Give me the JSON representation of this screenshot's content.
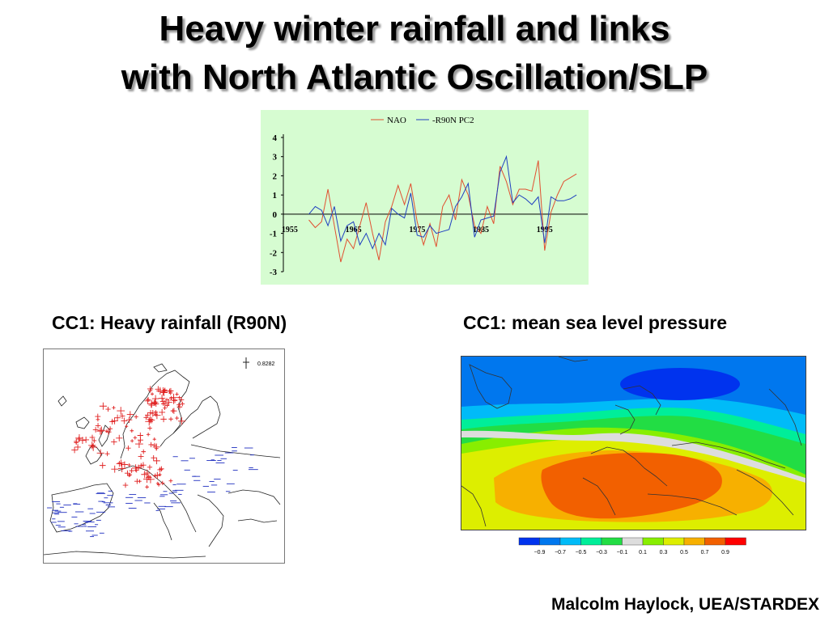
{
  "title_line1": "Heavy winter rainfall and links",
  "title_line2": "with North Atlantic Oscillation/SLP",
  "caption_left": "CC1: Heavy rainfall (R90N)",
  "caption_right": "CC1: mean sea level pressure",
  "credit": "Malcolm Haylock, UEA/STARDEX",
  "rain_map": {
    "legend_value": "0.8282"
  },
  "slp_map": {
    "scale_labels": [
      "−0.9",
      "−0.7",
      "−0.5",
      "−0.3",
      "−0.1",
      "0.1",
      "0.3",
      "0.5",
      "0.7",
      "0.9"
    ],
    "scale_colors": [
      "#0033ee",
      "#0077ee",
      "#00bbf8",
      "#00ee99",
      "#22dd44",
      "#dddddd",
      "#88ee00",
      "#ddee00",
      "#f7b000",
      "#f26000",
      "#ff0000"
    ]
  },
  "chart_data": {
    "type": "line",
    "x_tick_labels": [
      "1955",
      "1965",
      "1975",
      "1985",
      "1995"
    ],
    "y_ticks": [
      4,
      3,
      2,
      1,
      0,
      -1,
      -2,
      -3
    ],
    "ylim": [
      -3,
      4
    ],
    "xlim": [
      1954,
      2001
    ],
    "title": "",
    "xlabel": "",
    "ylabel": "",
    "legend_position": "top-center",
    "grid": false,
    "x": [
      1958,
      1959,
      1960,
      1961,
      1962,
      1963,
      1964,
      1965,
      1966,
      1967,
      1968,
      1969,
      1970,
      1971,
      1972,
      1973,
      1974,
      1975,
      1976,
      1977,
      1978,
      1979,
      1980,
      1981,
      1982,
      1983,
      1984,
      1985,
      1986,
      1987,
      1988,
      1989,
      1990,
      1991,
      1992,
      1993,
      1994,
      1995,
      1996,
      1997,
      1998,
      1999,
      2000
    ],
    "series": [
      {
        "name": "NAO",
        "color": "#e05030",
        "values": [
          -0.3,
          -0.7,
          -0.4,
          1.3,
          -0.6,
          -2.5,
          -1.3,
          -1.8,
          -0.6,
          0.6,
          -1.0,
          -2.4,
          -0.4,
          0.4,
          1.5,
          0.5,
          1.6,
          -0.4,
          -1.6,
          -0.5,
          -1.7,
          0.4,
          1.0,
          -0.3,
          1.8,
          1.0,
          -0.6,
          -1.0,
          0.4,
          -0.5,
          2.5,
          1.7,
          0.5,
          1.3,
          1.3,
          1.2,
          2.8,
          -1.9,
          0.1,
          1.0,
          1.7,
          1.9,
          2.1
        ]
      },
      {
        "name": "-R90N PC2",
        "color": "#2040c0",
        "values": [
          0.0,
          0.4,
          0.2,
          -0.6,
          0.4,
          -1.4,
          -0.6,
          -0.4,
          -1.6,
          -1.0,
          -1.8,
          -1.0,
          -1.6,
          0.3,
          0.0,
          -0.2,
          1.1,
          -1.1,
          -1.2,
          -0.6,
          -1.0,
          -0.9,
          -0.8,
          0.4,
          0.9,
          1.6,
          -1.2,
          -0.3,
          -0.2,
          -0.1,
          2.2,
          3.0,
          0.6,
          1.0,
          0.8,
          0.5,
          0.9,
          -1.5,
          0.9,
          0.7,
          0.7,
          0.8,
          1.0
        ]
      }
    ]
  }
}
